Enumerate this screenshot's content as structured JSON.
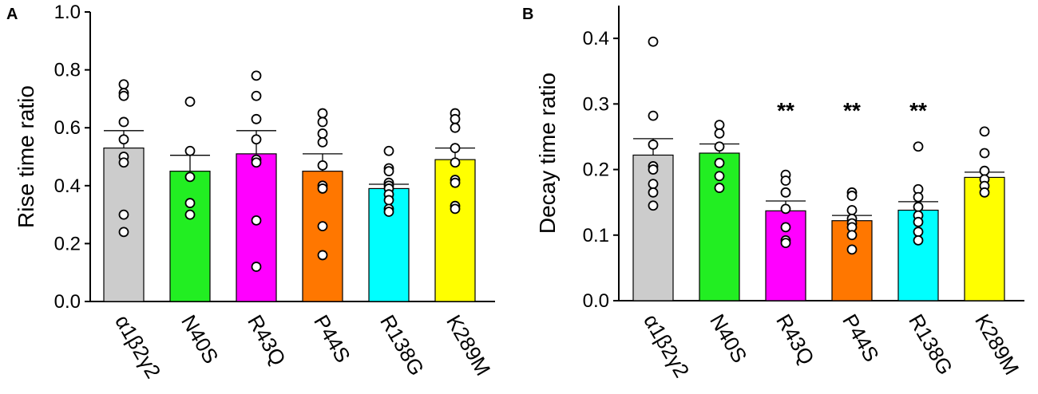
{
  "chart_data": [
    {
      "panel": "A",
      "type": "bar",
      "ylabel": "Rise time ratio",
      "ylim": [
        0,
        1.0
      ],
      "yticks": [
        0.0,
        0.2,
        0.4,
        0.6,
        0.8,
        1.0
      ],
      "ytick_labels": [
        "0.0",
        "0.2",
        "0.4",
        "0.6",
        "0.8",
        "1.0"
      ],
      "categories": [
        "α1β2γ2",
        "N40S",
        "R43Q",
        "P44S",
        "R138G",
        "K289M"
      ],
      "colors": [
        "#cccccc",
        "#22ee22",
        "#ff00ff",
        "#ff7700",
        "#00ffff",
        "#ffff00"
      ],
      "values": [
        0.53,
        0.45,
        0.51,
        0.45,
        0.39,
        0.49
      ],
      "errors": [
        0.06,
        0.055,
        0.08,
        0.06,
        0.015,
        0.04
      ],
      "points": [
        [
          0.75,
          0.72,
          0.71,
          0.62,
          0.56,
          0.5,
          0.48,
          0.3,
          0.24
        ],
        [
          0.69,
          0.52,
          0.43,
          0.34,
          0.3
        ],
        [
          0.78,
          0.71,
          0.63,
          0.56,
          0.49,
          0.48,
          0.28,
          0.12
        ],
        [
          0.65,
          0.62,
          0.58,
          0.55,
          0.47,
          0.4,
          0.39,
          0.26,
          0.16
        ],
        [
          0.52,
          0.46,
          0.45,
          0.41,
          0.4,
          0.39,
          0.37,
          0.35,
          0.32,
          0.31
        ],
        [
          0.65,
          0.63,
          0.6,
          0.53,
          0.48,
          0.42,
          0.41,
          0.33,
          0.32
        ]
      ],
      "significance": [
        "",
        "",
        "",
        "",
        "",
        ""
      ]
    },
    {
      "panel": "B",
      "type": "bar",
      "ylabel": "Decay time ratio",
      "ylim": [
        0,
        0.45
      ],
      "yticks": [
        0.0,
        0.1,
        0.2,
        0.3,
        0.4
      ],
      "ytick_labels": [
        "0.0",
        "0.1",
        "0.2",
        "0.3",
        "0.4"
      ],
      "categories": [
        "α1β2γ2",
        "N40S",
        "R43Q",
        "P44S",
        "R138G",
        "K289M"
      ],
      "colors": [
        "#cccccc",
        "#22ee22",
        "#ff00ff",
        "#ff7700",
        "#00ffff",
        "#ffff00"
      ],
      "values": [
        0.222,
        0.225,
        0.137,
        0.122,
        0.138,
        0.188
      ],
      "errors": [
        0.025,
        0.014,
        0.015,
        0.008,
        0.013,
        0.008
      ],
      "points": [
        [
          0.395,
          0.282,
          0.238,
          0.205,
          0.2,
          0.178,
          0.165,
          0.145
        ],
        [
          0.268,
          0.255,
          0.235,
          0.21,
          0.19,
          0.172
        ],
        [
          0.192,
          0.183,
          0.165,
          0.14,
          0.112,
          0.092,
          0.088
        ],
        [
          0.165,
          0.16,
          0.138,
          0.125,
          0.118,
          0.112,
          0.1,
          0.078
        ],
        [
          0.235,
          0.17,
          0.158,
          0.143,
          0.13,
          0.12,
          0.105,
          0.092
        ],
        [
          0.258,
          0.225,
          0.198,
          0.185,
          0.175,
          0.165
        ]
      ],
      "significance": [
        "",
        "",
        "**",
        "**",
        "**",
        ""
      ]
    }
  ]
}
